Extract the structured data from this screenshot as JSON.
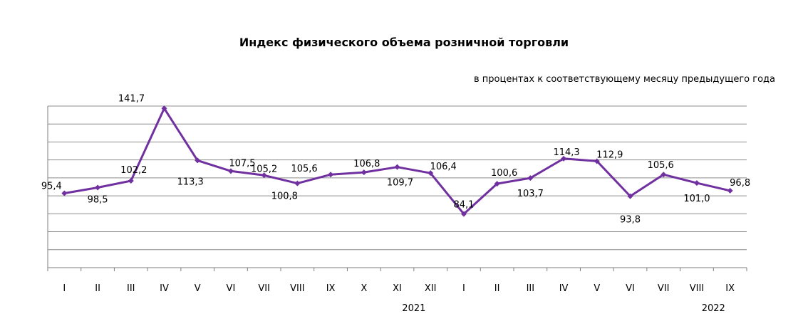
{
  "chart_data": {
    "type": "line",
    "title": "Индекс физического объема розничной торговли",
    "subtitle": "в процентах к соответствующему месяцу предыдущего года",
    "categories": [
      "I",
      "II",
      "III",
      "IV",
      "V",
      "VI",
      "VII",
      "VIII",
      "IX",
      "X",
      "XI",
      "XII",
      "I",
      "II",
      "III",
      "IV",
      "V",
      "VI",
      "VII",
      "VIII",
      "IX"
    ],
    "year_labels": [
      {
        "label": "2021",
        "category_index": 10.5
      },
      {
        "label": "2022",
        "category_index": 19.5
      }
    ],
    "series": [
      {
        "values": [
          95.4,
          98.5,
          102.2,
          141.7,
          113.3,
          107.5,
          105.2,
          100.8,
          105.6,
          106.8,
          109.7,
          106.4,
          84.1,
          100.6,
          103.7,
          114.3,
          112.9,
          93.8,
          105.6,
          101.0,
          96.8
        ],
        "labels": [
          "95,4",
          "98,5",
          "102,2",
          "141,7",
          "113,3",
          "107,5",
          "105,2",
          "100,8",
          "105,6",
          "106,8",
          "109,7",
          "106,4",
          "84,1",
          "100,6",
          "103,7",
          "114,3",
          "112,9",
          "93,8",
          "105,6",
          "101,0",
          "96,8"
        ],
        "color": "#7030a0"
      }
    ],
    "ylim": [
      80,
      145
    ],
    "grid": true,
    "legend": "none"
  }
}
